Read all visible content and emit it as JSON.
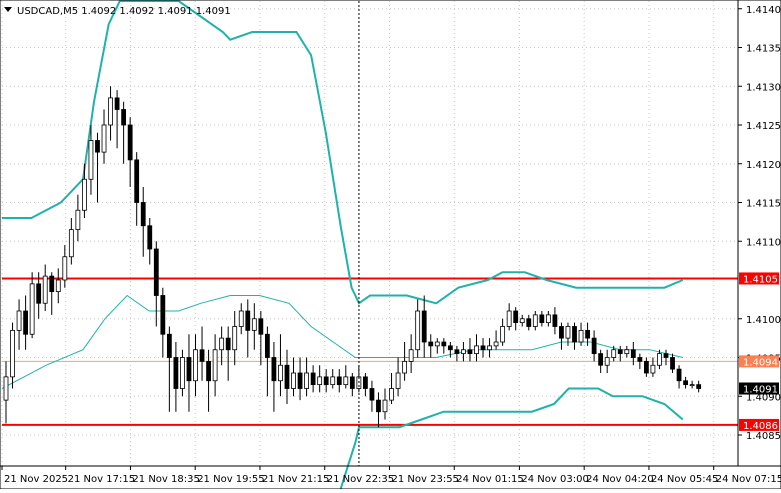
{
  "header": {
    "symbol_caption": "USDCAD,M5  1.4092 1.4092 1.4091 1.4091"
  },
  "colors": {
    "background": "#ffffff",
    "grid": "#c8c8c8",
    "candle": "#000000",
    "band_outer": "#20b2aa",
    "band_mid": "#20b2aa",
    "support_resistance": "#ff0000",
    "current_line": "#f4a460",
    "current_label_bg": "#ff7f50",
    "last_price_bg": "#000000"
  },
  "chart_data": {
    "type": "candlestick",
    "symbol": "USDCAD",
    "timeframe": "M5",
    "ylim": [
      1.4081,
      1.4141
    ],
    "y_ticks": [
      "1.4140",
      "1.4135",
      "1.4130",
      "1.4125",
      "1.4120",
      "1.4115",
      "1.4110",
      "1.4100",
      "1.4095",
      "1.4090",
      "1.4085"
    ],
    "x_ticks": [
      "21 Nov 2025",
      "21 Nov 17:15",
      "21 Nov 18:35",
      "21 Nov 19:55",
      "21 Nov 21:15",
      "21 Nov 22:35",
      "21 Nov 23:55",
      "24 Nov 01:15",
      "24 Nov 03:00",
      "24 Nov 04:20",
      "24 Nov 05:45",
      "24 Nov 07:15"
    ],
    "levels": [
      {
        "label": "1.4105",
        "value": 1.41052,
        "kind": "resistance"
      },
      {
        "label": "1.4086",
        "value": 1.40863,
        "kind": "support"
      },
      {
        "label": "1.4094",
        "value": 1.40945,
        "kind": "current"
      }
    ],
    "last_price": "1.4091",
    "crosshair_index": 0.485,
    "band_upper": [
      [
        0,
        1.4113
      ],
      [
        0.04,
        1.4113
      ],
      [
        0.08,
        1.4115
      ],
      [
        0.11,
        1.4118
      ],
      [
        0.125,
        1.4128
      ],
      [
        0.145,
        1.4138
      ],
      [
        0.16,
        1.4141
      ],
      [
        0.19,
        1.4141
      ],
      [
        0.24,
        1.4141
      ],
      [
        0.3,
        1.4137
      ],
      [
        0.31,
        1.4136
      ],
      [
        0.34,
        1.4137
      ],
      [
        0.38,
        1.4137
      ],
      [
        0.4,
        1.4137
      ],
      [
        0.42,
        1.4134
      ],
      [
        0.44,
        1.4124
      ],
      [
        0.46,
        1.4112
      ],
      [
        0.475,
        1.4104
      ],
      [
        0.485,
        1.4102
      ],
      [
        0.5,
        1.4103
      ],
      [
        0.55,
        1.4103
      ],
      [
        0.59,
        1.4102
      ],
      [
        0.62,
        1.4104
      ],
      [
        0.66,
        1.4105
      ],
      [
        0.68,
        1.4106
      ],
      [
        0.71,
        1.4106
      ],
      [
        0.74,
        1.4105
      ],
      [
        0.78,
        1.4104
      ],
      [
        0.82,
        1.4104
      ],
      [
        0.86,
        1.4104
      ],
      [
        0.9,
        1.4104
      ],
      [
        0.925,
        1.4105
      ]
    ],
    "band_mid": [
      [
        0,
        1.4091
      ],
      [
        0.06,
        1.4094
      ],
      [
        0.11,
        1.4096
      ],
      [
        0.14,
        1.41
      ],
      [
        0.17,
        1.4103
      ],
      [
        0.2,
        1.4101
      ],
      [
        0.24,
        1.4101
      ],
      [
        0.27,
        1.4102
      ],
      [
        0.31,
        1.4103
      ],
      [
        0.35,
        1.4103
      ],
      [
        0.39,
        1.4102
      ],
      [
        0.42,
        1.4099
      ],
      [
        0.45,
        1.4097
      ],
      [
        0.48,
        1.4095
      ],
      [
        0.51,
        1.4095
      ],
      [
        0.55,
        1.4095
      ],
      [
        0.59,
        1.4095
      ],
      [
        0.64,
        1.4096
      ],
      [
        0.68,
        1.4096
      ],
      [
        0.72,
        1.4096
      ],
      [
        0.76,
        1.4097
      ],
      [
        0.8,
        1.4097
      ],
      [
        0.84,
        1.4096
      ],
      [
        0.88,
        1.4096
      ],
      [
        0.925,
        1.4095
      ]
    ],
    "band_lower": [
      [
        0.46,
        1.4078
      ],
      [
        0.47,
        1.4081
      ],
      [
        0.48,
        1.4084
      ],
      [
        0.485,
        1.4086
      ],
      [
        0.5,
        1.4086
      ],
      [
        0.54,
        1.4086
      ],
      [
        0.57,
        1.4087
      ],
      [
        0.6,
        1.4088
      ],
      [
        0.64,
        1.4088
      ],
      [
        0.68,
        1.4088
      ],
      [
        0.72,
        1.4088
      ],
      [
        0.75,
        1.4089
      ],
      [
        0.77,
        1.4091
      ],
      [
        0.79,
        1.4091
      ],
      [
        0.81,
        1.4091
      ],
      [
        0.83,
        1.409
      ],
      [
        0.85,
        1.409
      ],
      [
        0.87,
        1.409
      ],
      [
        0.9,
        1.4089
      ],
      [
        0.925,
        1.4087
      ]
    ],
    "candles": [
      [
        1.40895,
        1.40925,
        1.40865,
        1.40945
      ],
      [
        1.40925,
        1.40985,
        1.4091,
        1.40995
      ],
      [
        1.40985,
        1.4101,
        1.4096,
        1.41025
      ],
      [
        1.4101,
        1.4098,
        1.4096,
        1.4103
      ],
      [
        1.4098,
        1.41045,
        1.40975,
        1.4106
      ],
      [
        1.41045,
        1.4102,
        1.41,
        1.4106
      ],
      [
        1.4102,
        1.41055,
        1.4101,
        1.4107
      ],
      [
        1.41055,
        1.41035,
        1.41005,
        1.4106
      ],
      [
        1.41035,
        1.4105,
        1.4102,
        1.41065
      ],
      [
        1.4105,
        1.4108,
        1.4104,
        1.41095
      ],
      [
        1.4108,
        1.41115,
        1.4107,
        1.4113
      ],
      [
        1.41115,
        1.4114,
        1.411,
        1.4116
      ],
      [
        1.4114,
        1.4118,
        1.4113,
        1.412
      ],
      [
        1.4118,
        1.4123,
        1.4116,
        1.4125
      ],
      [
        1.4123,
        1.41215,
        1.4115,
        1.4124
      ],
      [
        1.41215,
        1.4125,
        1.412,
        1.4127
      ],
      [
        1.4125,
        1.41285,
        1.4123,
        1.413
      ],
      [
        1.41285,
        1.4127,
        1.4122,
        1.41295
      ],
      [
        1.4127,
        1.4125,
        1.412,
        1.4128
      ],
      [
        1.4125,
        1.41205,
        1.4117,
        1.4126
      ],
      [
        1.41205,
        1.4115,
        1.4112,
        1.41215
      ],
      [
        1.4115,
        1.4112,
        1.4108,
        1.4117
      ],
      [
        1.4112,
        1.4109,
        1.4107,
        1.4113
      ],
      [
        1.4109,
        1.4103,
        1.4099,
        1.411
      ],
      [
        1.4103,
        1.4098,
        1.4095,
        1.4104
      ],
      [
        1.4098,
        1.4095,
        1.4088,
        1.4099
      ],
      [
        1.4095,
        1.4091,
        1.4088,
        1.4097
      ],
      [
        1.4091,
        1.4095,
        1.409,
        1.4096
      ],
      [
        1.4095,
        1.4092,
        1.4088,
        1.4098
      ],
      [
        1.4092,
        1.4096,
        1.409,
        1.4098
      ],
      [
        1.4096,
        1.40945,
        1.4092,
        1.4099
      ],
      [
        1.40945,
        1.4092,
        1.4088,
        1.4096
      ],
      [
        1.4092,
        1.4096,
        1.409,
        1.4098
      ],
      [
        1.4096,
        1.40975,
        1.4094,
        1.4099
      ],
      [
        1.40975,
        1.4096,
        1.4092,
        1.4099
      ],
      [
        1.4096,
        1.4099,
        1.4094,
        1.4101
      ],
      [
        1.4099,
        1.4101,
        1.4098,
        1.4102
      ],
      [
        1.4101,
        1.40985,
        1.4095,
        1.41025
      ],
      [
        1.40985,
        1.41,
        1.4096,
        1.4102
      ],
      [
        1.41,
        1.4098,
        1.4094,
        1.4101
      ],
      [
        1.4098,
        1.4095,
        1.409,
        1.4099
      ],
      [
        1.4095,
        1.4092,
        1.4088,
        1.4097
      ],
      [
        1.4092,
        1.4094,
        1.409,
        1.4098
      ],
      [
        1.4094,
        1.4091,
        1.4089,
        1.4096
      ],
      [
        1.4091,
        1.4093,
        1.409,
        1.4095
      ],
      [
        1.4093,
        1.4091,
        1.40895,
        1.4095
      ],
      [
        1.4091,
        1.4093,
        1.409,
        1.4095
      ],
      [
        1.4093,
        1.40915,
        1.40905,
        1.4094
      ],
      [
        1.40915,
        1.40925,
        1.40905,
        1.4094
      ],
      [
        1.40925,
        1.40915,
        1.40905,
        1.40935
      ],
      [
        1.40915,
        1.40925,
        1.4091,
        1.40935
      ],
      [
        1.40925,
        1.40915,
        1.40905,
        1.40935
      ],
      [
        1.40915,
        1.40925,
        1.4091,
        1.4094
      ],
      [
        1.40925,
        1.4091,
        1.409,
        1.4093
      ],
      [
        1.4091,
        1.40925,
        1.40905,
        1.4094
      ],
      [
        1.40925,
        1.4091,
        1.409,
        1.4093
      ],
      [
        1.4091,
        1.40895,
        1.4088,
        1.4092
      ],
      [
        1.40895,
        1.4088,
        1.4086,
        1.40905
      ],
      [
        1.4088,
        1.40895,
        1.4087,
        1.4091
      ],
      [
        1.40895,
        1.4091,
        1.4089,
        1.4093
      ],
      [
        1.4091,
        1.4093,
        1.409,
        1.4095
      ],
      [
        1.4093,
        1.40945,
        1.4092,
        1.4097
      ],
      [
        1.40945,
        1.4096,
        1.4093,
        1.4098
      ],
      [
        1.4096,
        1.4101,
        1.4095,
        1.41025
      ],
      [
        1.4101,
        1.4097,
        1.4095,
        1.4103
      ],
      [
        1.4097,
        1.40965,
        1.4095,
        1.4098
      ],
      [
        1.40965,
        1.4097,
        1.40955,
        1.40975
      ],
      [
        1.4097,
        1.40965,
        1.40955,
        1.40975
      ],
      [
        1.40965,
        1.4096,
        1.4095,
        1.4097
      ],
      [
        1.4096,
        1.40955,
        1.40945,
        1.40965
      ],
      [
        1.40955,
        1.4096,
        1.40945,
        1.4097
      ],
      [
        1.4096,
        1.40955,
        1.40945,
        1.40975
      ],
      [
        1.40955,
        1.40965,
        1.40945,
        1.4098
      ],
      [
        1.40965,
        1.4096,
        1.4095,
        1.40975
      ],
      [
        1.4096,
        1.40965,
        1.4095,
        1.40975
      ],
      [
        1.40965,
        1.4097,
        1.4096,
        1.40985
      ],
      [
        1.4097,
        1.4099,
        1.40965,
        1.41
      ],
      [
        1.4099,
        1.4101,
        1.40985,
        1.4102
      ],
      [
        1.4101,
        1.40995,
        1.40985,
        1.41015
      ],
      [
        1.40995,
        1.41,
        1.4099,
        1.41005
      ],
      [
        1.41,
        1.4099,
        1.40985,
        1.41005
      ],
      [
        1.4099,
        1.41005,
        1.40985,
        1.4101
      ],
      [
        1.41005,
        1.40995,
        1.4099,
        1.4101
      ],
      [
        1.40995,
        1.41005,
        1.4099,
        1.4101
      ],
      [
        1.41005,
        1.4099,
        1.4098,
        1.41015
      ],
      [
        1.4099,
        1.40975,
        1.4096,
        1.40995
      ],
      [
        1.40975,
        1.4099,
        1.40965,
        1.40995
      ],
      [
        1.4099,
        1.4097,
        1.4096,
        1.40995
      ],
      [
        1.4097,
        1.40985,
        1.40965,
        1.40995
      ],
      [
        1.40985,
        1.40975,
        1.40965,
        1.40995
      ],
      [
        1.40975,
        1.40955,
        1.40945,
        1.40985
      ],
      [
        1.40955,
        1.4094,
        1.4093,
        1.4096
      ],
      [
        1.4094,
        1.4095,
        1.4093,
        1.4096
      ],
      [
        1.4095,
        1.4096,
        1.40945,
        1.40965
      ],
      [
        1.4096,
        1.40955,
        1.40945,
        1.40965
      ],
      [
        1.40955,
        1.4096,
        1.4095,
        1.40965
      ],
      [
        1.4096,
        1.4095,
        1.4094,
        1.4097
      ],
      [
        1.4095,
        1.40945,
        1.40935,
        1.40955
      ],
      [
        1.40945,
        1.4093,
        1.40925,
        1.4095
      ],
      [
        1.4093,
        1.4094,
        1.40925,
        1.4095
      ],
      [
        1.4094,
        1.40955,
        1.40935,
        1.4096
      ],
      [
        1.40955,
        1.4095,
        1.4094,
        1.4096
      ],
      [
        1.4095,
        1.40935,
        1.4093,
        1.40955
      ],
      [
        1.40935,
        1.4092,
        1.4091,
        1.4094
      ],
      [
        1.4092,
        1.40915,
        1.4091,
        1.40925
      ],
      [
        1.40915,
        1.40915,
        1.4091,
        1.4092
      ],
      [
        1.40915,
        1.4091,
        1.40905,
        1.4092
      ]
    ]
  }
}
